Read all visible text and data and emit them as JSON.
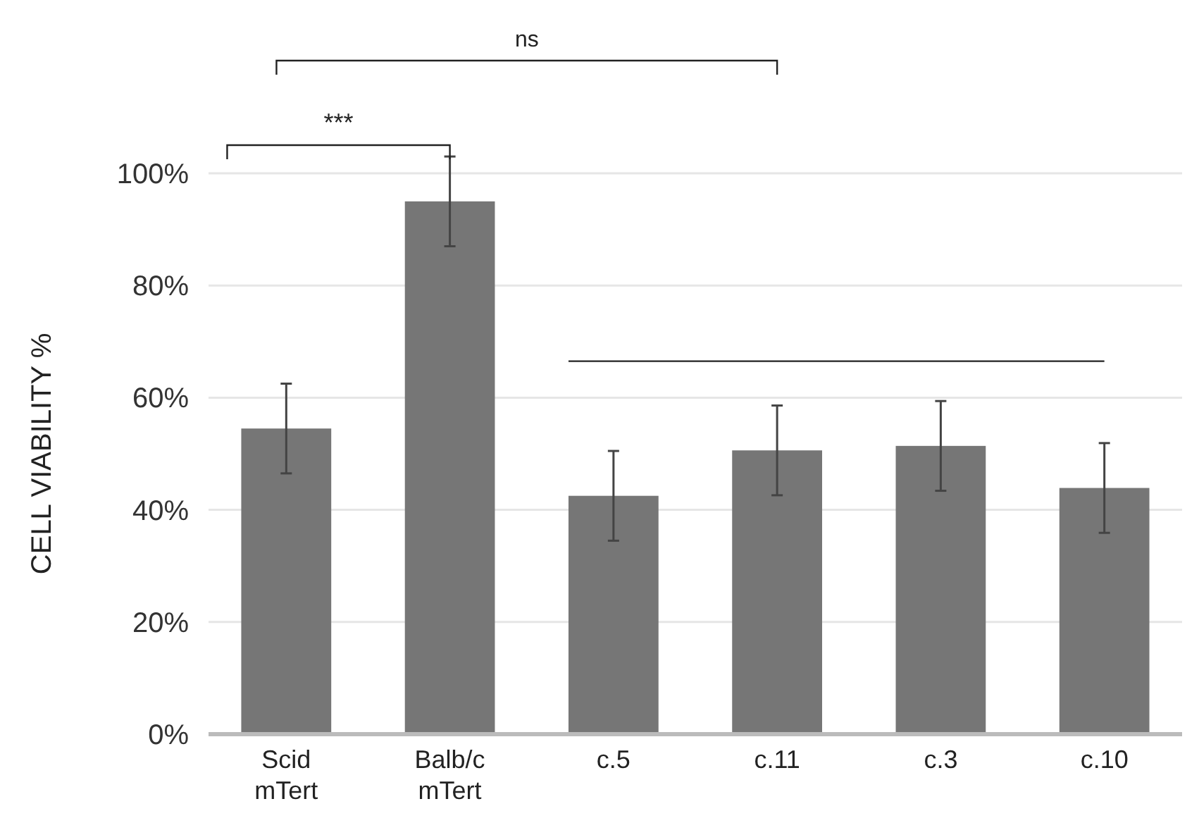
{
  "chart_data": {
    "type": "bar",
    "ylabel": "CELL VIABILITY %",
    "categories": [
      "Scid\nmTert",
      "Balb/c\nmTert",
      "c.5",
      "c.11",
      "c.3",
      "c.10"
    ],
    "values": [
      54.5,
      95,
      42.5,
      50.6,
      51.4,
      43.9
    ],
    "errors": [
      8,
      8,
      8,
      8,
      8,
      8
    ],
    "color": "#767676",
    "ylim": [
      0,
      100
    ],
    "yticks": [
      {
        "value": 0,
        "label": "0%"
      },
      {
        "value": 20,
        "label": "20%"
      },
      {
        "value": 40,
        "label": "40%"
      },
      {
        "value": 60,
        "label": "60%"
      },
      {
        "value": 80,
        "label": "80%"
      },
      {
        "value": 100,
        "label": "100%"
      }
    ],
    "grid": "y",
    "ref_lines": [
      {
        "axis": "y",
        "value": 66.5,
        "color": "#222222"
      }
    ],
    "annotations": [
      "***",
      "ns"
    ]
  }
}
